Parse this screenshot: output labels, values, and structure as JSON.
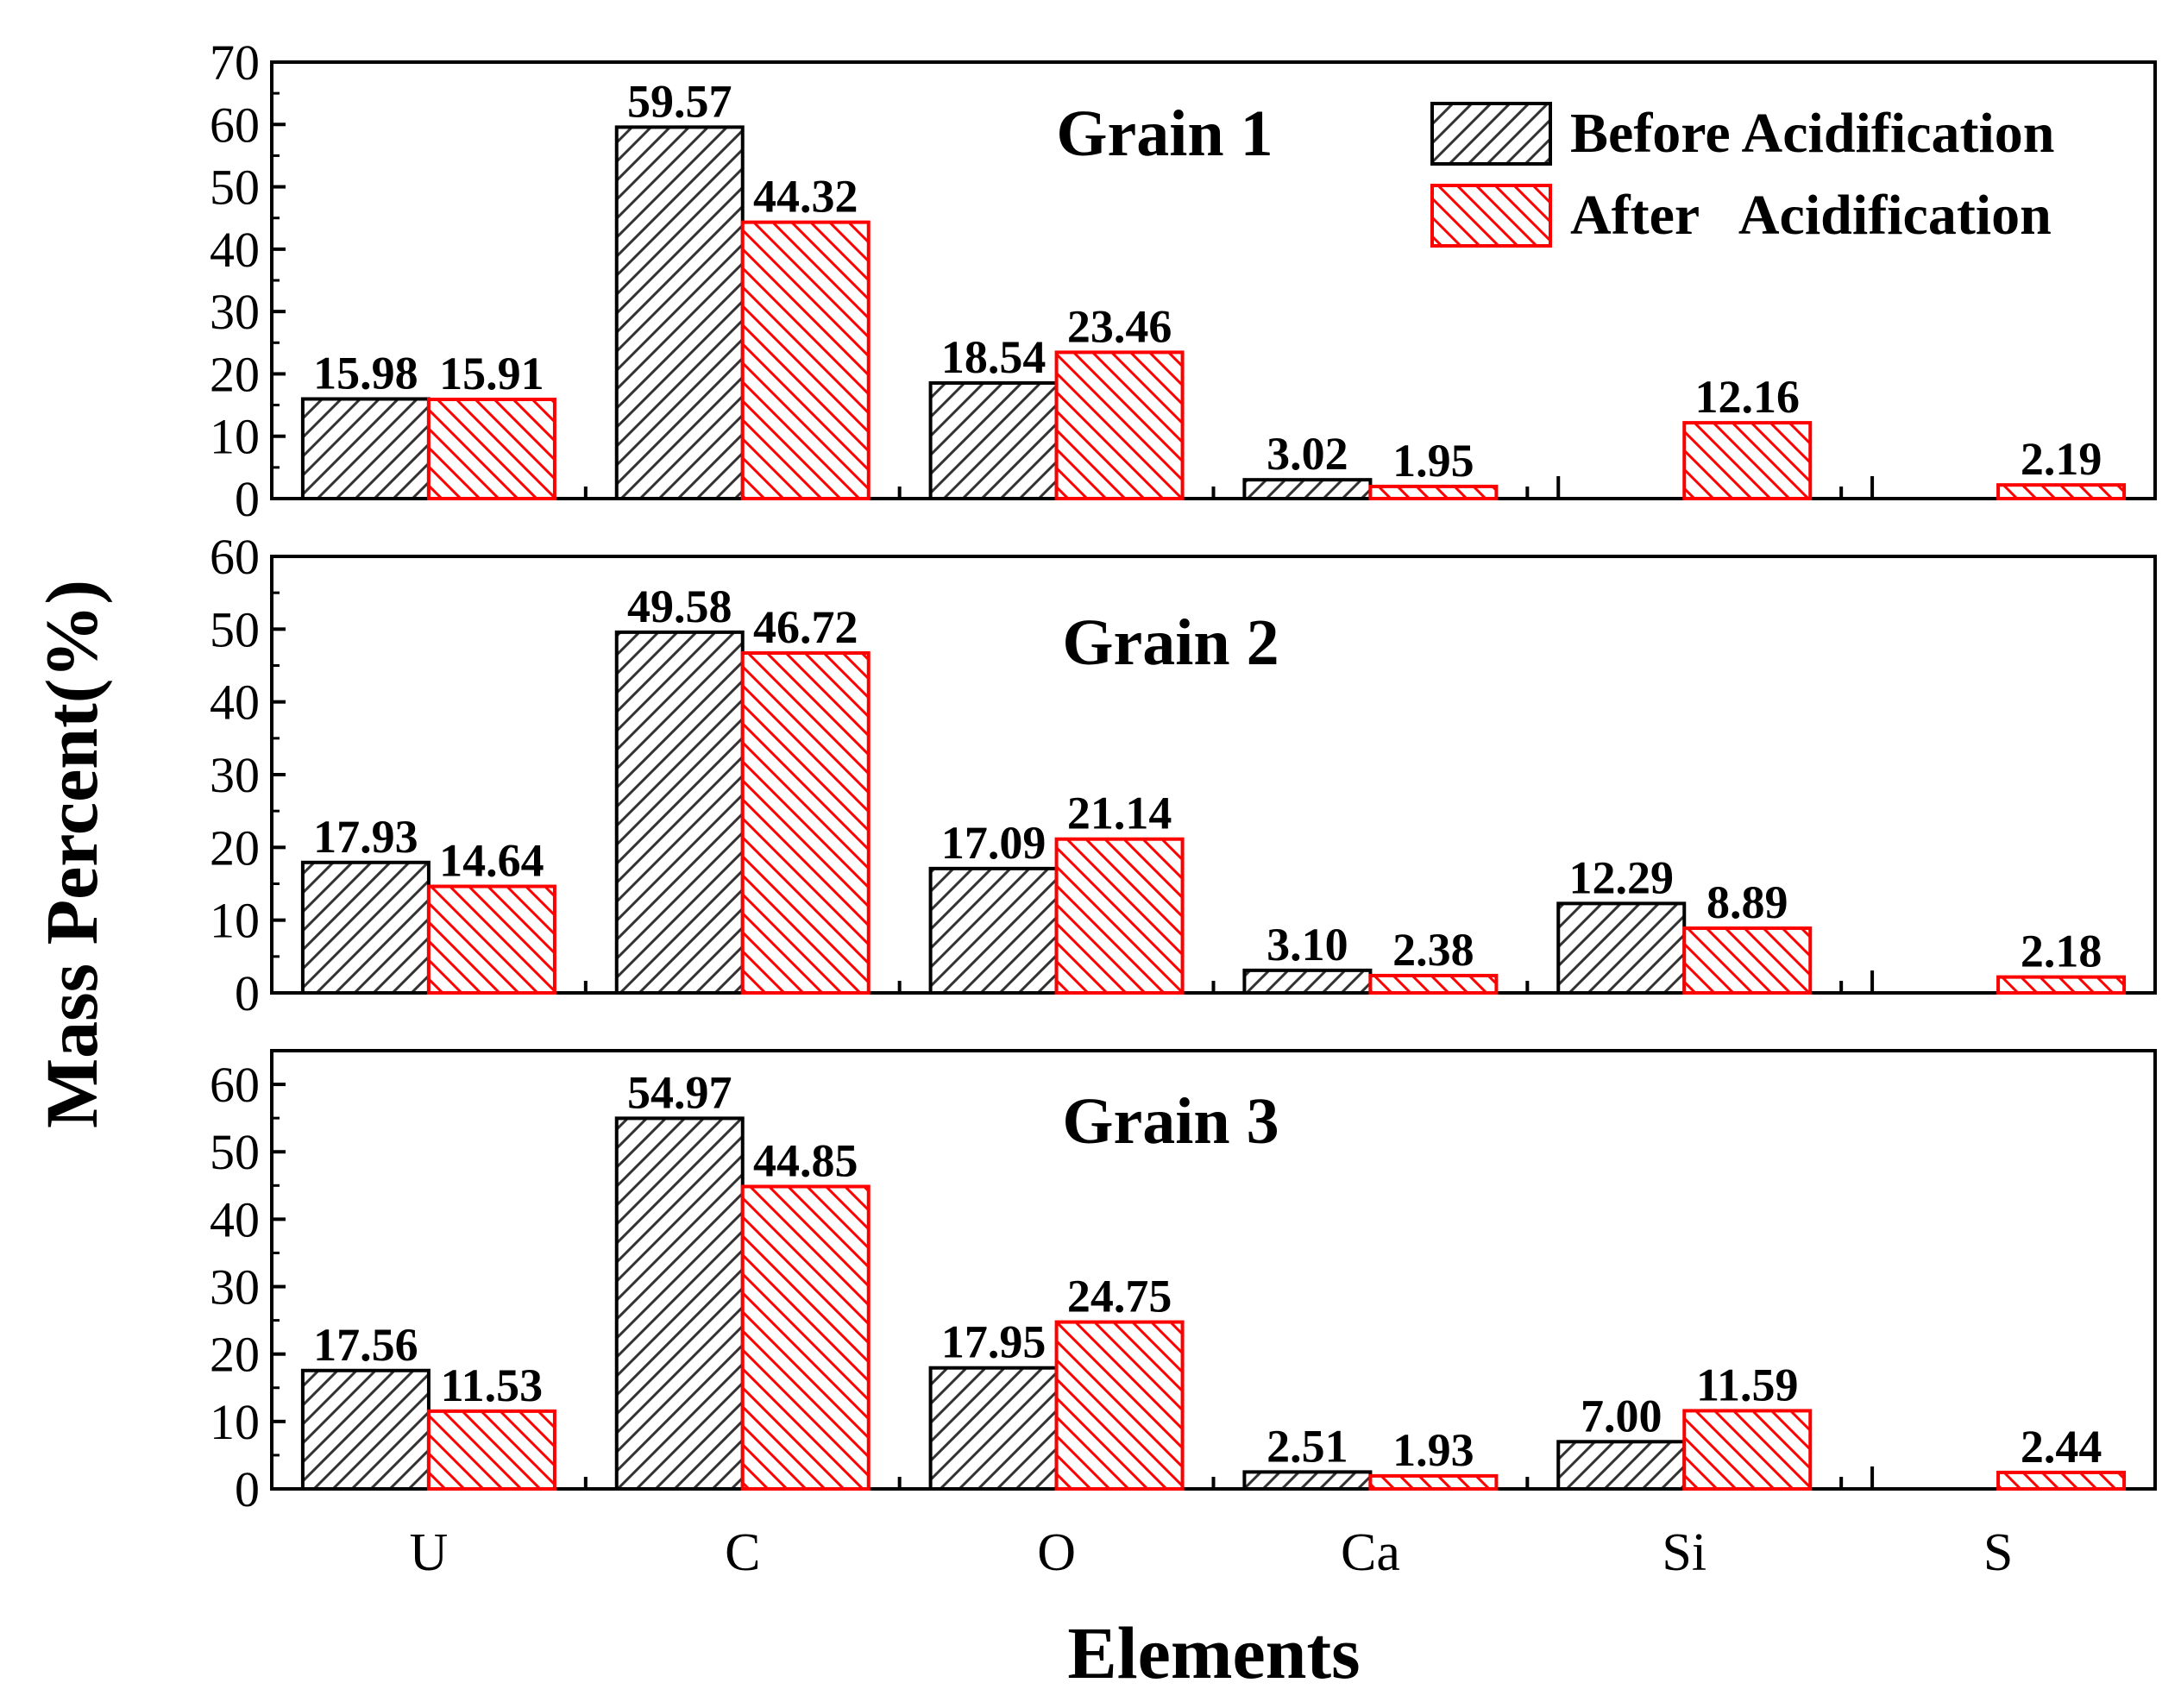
{
  "chart_data": {
    "type": "bar",
    "xlabel": "Elements",
    "ylabel": "Mass Percent(%)",
    "categories": [
      "U",
      "C",
      "O",
      "Ca",
      "Si",
      "S"
    ],
    "legend": {
      "position": "top-right",
      "entries": [
        "Before Acidification",
        "After   Acidification"
      ]
    },
    "colors": {
      "before": "#333333",
      "after": "#ff0000"
    },
    "panels": [
      {
        "title": "Grain 1",
        "ylim": [
          0,
          70
        ],
        "yticks": [
          0,
          10,
          20,
          30,
          40,
          50,
          60,
          70
        ],
        "series": [
          {
            "name": "Before Acidification",
            "values": [
              15.98,
              59.57,
              18.54,
              3.02,
              null,
              null
            ],
            "labels": [
              "15.98",
              "59.57",
              "18.54",
              "3.02",
              "",
              ""
            ]
          },
          {
            "name": "After Acidification",
            "values": [
              15.91,
              44.32,
              23.46,
              1.95,
              12.16,
              2.19
            ],
            "labels": [
              "15.91",
              "44.32",
              "23.46",
              "1.95",
              "12.16",
              "2.19"
            ]
          }
        ]
      },
      {
        "title": "Grain 2",
        "ylim": [
          0,
          60
        ],
        "yticks": [
          0,
          10,
          20,
          30,
          40,
          50,
          60
        ],
        "series": [
          {
            "name": "Before Acidification",
            "values": [
              17.93,
              49.58,
              17.09,
              3.1,
              12.29,
              null
            ],
            "labels": [
              "17.93",
              "49.58",
              "17.09",
              "3.10",
              "12.29",
              ""
            ]
          },
          {
            "name": "After Acidification",
            "values": [
              14.64,
              46.72,
              21.14,
              2.38,
              8.89,
              2.18
            ],
            "labels": [
              "14.64",
              "46.72",
              "21.14",
              "2.38",
              "8.89",
              "2.18"
            ]
          }
        ]
      },
      {
        "title": "Grain 3",
        "ylim": [
          0,
          65
        ],
        "yticks": [
          0,
          10,
          20,
          30,
          40,
          50,
          60
        ],
        "series": [
          {
            "name": "Before Acidification",
            "values": [
              17.56,
              54.97,
              17.95,
              2.51,
              7.0,
              null
            ],
            "labels": [
              "17.56",
              "54.97",
              "17.95",
              "2.51",
              "7.00",
              ""
            ]
          },
          {
            "name": "After Acidification",
            "values": [
              11.53,
              44.85,
              24.75,
              1.93,
              11.59,
              2.44
            ],
            "labels": [
              "11.53",
              "44.85",
              "24.75",
              "1.93",
              "11.59",
              "2.44"
            ]
          }
        ]
      }
    ]
  }
}
